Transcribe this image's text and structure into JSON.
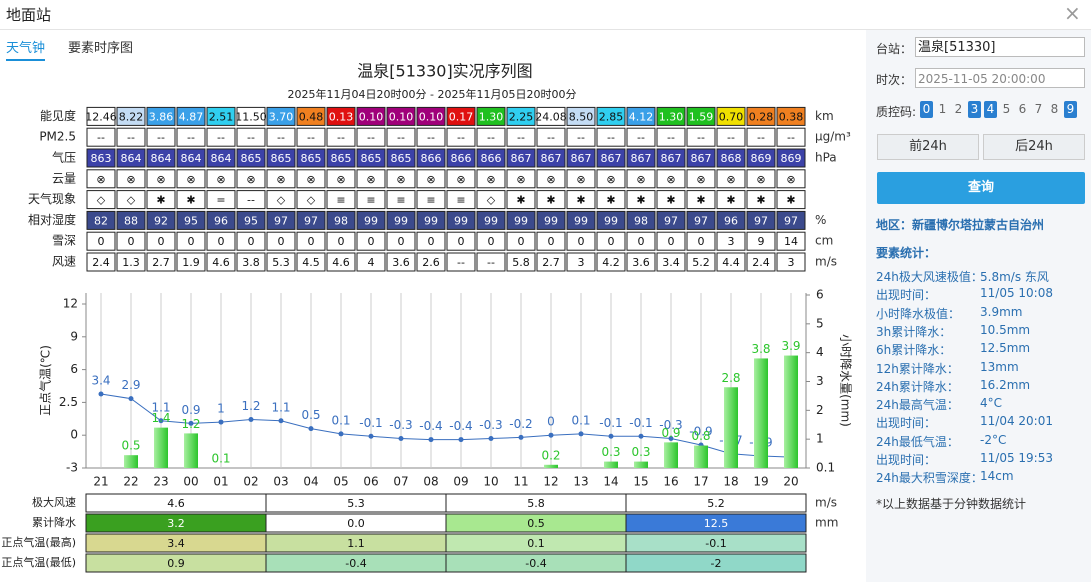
{
  "window": {
    "title": "地面站",
    "close": "×"
  },
  "tabs": [
    "天气钟",
    "要素时序图"
  ],
  "chart_title": "温泉[51330]实况序列图",
  "chart_subtitle": "2025年11月04日20时00分 - 2025年11月05日20时00分",
  "table": {
    "rows": [
      {
        "label": "能见度",
        "unit": "km",
        "values": [
          "12.46",
          "8.22",
          "3.86",
          "4.87",
          "2.51",
          "11.50",
          "3.70",
          "0.48",
          "0.13",
          "0.10",
          "0.10",
          "0.10",
          "0.17",
          "1.30",
          "2.25",
          "24.08",
          "8.50",
          "2.85",
          "4.12",
          "1.30",
          "1.59",
          "0.70",
          "0.28",
          "0.38"
        ],
        "colors": [
          "#ffffff",
          "#c4dcf4",
          "#3aa0e8",
          "#3aa0e8",
          "#30cff0",
          "#ffffff",
          "#3aa0e8",
          "#f08020",
          "#e01010",
          "#a0007a",
          "#a0007a",
          "#a0007a",
          "#e01010",
          "#20c020",
          "#30cff0",
          "#ffffff",
          "#c4dcf4",
          "#30cff0",
          "#3aa0e8",
          "#20c020",
          "#20c020",
          "#f0e000",
          "#f08020",
          "#f08020"
        ]
      },
      {
        "label": "PM2.5",
        "unit": "μg/m³",
        "values": [
          "--",
          "--",
          "--",
          "--",
          "--",
          "--",
          "--",
          "--",
          "--",
          "--",
          "--",
          "--",
          "--",
          "--",
          "--",
          "--",
          "--",
          "--",
          "--",
          "--",
          "--",
          "--",
          "--",
          "--"
        ]
      },
      {
        "label": "气压",
        "unit": "hPa",
        "fill": "#3c42a8",
        "values": [
          "863",
          "864",
          "864",
          "864",
          "864",
          "865",
          "865",
          "865",
          "865",
          "865",
          "865",
          "866",
          "866",
          "866",
          "867",
          "867",
          "867",
          "867",
          "867",
          "867",
          "867",
          "868",
          "869",
          "869"
        ]
      },
      {
        "label": "云量",
        "unit": "",
        "values": [
          "⊗",
          "⊗",
          "⊗",
          "⊗",
          "⊗",
          "⊗",
          "⊗",
          "⊗",
          "⊗",
          "⊗",
          "⊗",
          "⊗",
          "⊗",
          "⊗",
          "⊗",
          "⊗",
          "⊗",
          "⊗",
          "⊗",
          "⊗",
          "⊗",
          "⊗",
          "⊗",
          "⊗"
        ]
      },
      {
        "label": "天气现象",
        "unit": "",
        "values": [
          "◇",
          "◇",
          "✱",
          "✱",
          "=",
          "--",
          "◇",
          "◇",
          "≡",
          "≡",
          "≡",
          "≡",
          "≡",
          "◇",
          "✱",
          "✱",
          "✱",
          "✱",
          "✱",
          "✱",
          "✱",
          "✱",
          "✱",
          "✱"
        ]
      },
      {
        "label": "相对湿度",
        "unit": "%",
        "fill": "#3b4a8c",
        "values": [
          "82",
          "88",
          "92",
          "95",
          "96",
          "95",
          "97",
          "97",
          "98",
          "99",
          "99",
          "99",
          "99",
          "99",
          "99",
          "99",
          "99",
          "99",
          "98",
          "97",
          "97",
          "96",
          "97",
          "97"
        ]
      },
      {
        "label": "雪深",
        "unit": "cm",
        "values": [
          "0",
          "0",
          "0",
          "0",
          "0",
          "0",
          "0",
          "0",
          "0",
          "0",
          "0",
          "0",
          "0",
          "0",
          "0",
          "0",
          "0",
          "0",
          "0",
          "0",
          "0",
          "3",
          "9",
          "14"
        ]
      },
      {
        "label": "风速",
        "unit": "m/s",
        "values": [
          "2.4",
          "1.3",
          "2.7",
          "1.9",
          "4.6",
          "3.8",
          "5.3",
          "4.5",
          "4.6",
          "4",
          "3.6",
          "2.6",
          "--",
          "--",
          "5.8",
          "2.7",
          "3",
          "4.2",
          "3.6",
          "3.4",
          "5.2",
          "4.4",
          "2.4",
          "3"
        ]
      }
    ]
  },
  "chart_data": {
    "type": "bar_line",
    "categories": [
      "21",
      "22",
      "23",
      "00",
      "01",
      "02",
      "03",
      "04",
      "05",
      "06",
      "07",
      "08",
      "09",
      "10",
      "11",
      "12",
      "13",
      "14",
      "15",
      "16",
      "17",
      "18",
      "19",
      "20"
    ],
    "ylabel": "正点气温(℃)",
    "y2label": "小时降水量(mm)",
    "ylim": [
      -3,
      12
    ],
    "yticks": [
      -3,
      0,
      2.5,
      6,
      9,
      12
    ],
    "y2lim": [
      0.1,
      6
    ],
    "y2ticks": [
      0.1,
      1,
      2,
      3,
      4,
      5,
      6
    ],
    "grid": true,
    "series": [
      {
        "name": "正点气温",
        "type": "line",
        "color": "#3a6fbf",
        "values": [
          3.4,
          2.9,
          1.1,
          0.9,
          1,
          1.2,
          1.1,
          0.5,
          0.1,
          -0.1,
          -0.3,
          -0.4,
          -0.4,
          -0.3,
          -0.2,
          0,
          0.1,
          -0.1,
          -0.1,
          -0.3,
          -0.9,
          -1.7,
          -1.9,
          -2
        ]
      },
      {
        "name": "小时降水量",
        "type": "bar",
        "axis": "y2",
        "color": "#2cc52c",
        "values": [
          null,
          0.5,
          1.4,
          1.2,
          0.1,
          null,
          null,
          null,
          null,
          null,
          null,
          null,
          null,
          null,
          null,
          0.2,
          null,
          0.3,
          0.3,
          0.9,
          0.8,
          2.8,
          3.8,
          3.9
        ]
      }
    ]
  },
  "summary": {
    "units": [
      "m/s",
      "mm",
      "",
      ""
    ],
    "rows": [
      {
        "label": "极大风速",
        "values": [
          "4.6",
          "5.3",
          "5.8",
          "5.2"
        ],
        "colors": [
          "#ffffff",
          "#ffffff",
          "#ffffff",
          "#ffffff"
        ]
      },
      {
        "label": "累计降水",
        "values": [
          "3.2",
          "0.0",
          "0.5",
          "12.5"
        ],
        "colors": [
          "#3aa020",
          "#ffffff",
          "#a8e890",
          "#3a7ad8"
        ]
      },
      {
        "label": "正点气温(最高)",
        "values": [
          "3.4",
          "1.1",
          "0.1",
          "-0.1"
        ],
        "colors": [
          "#d8d890",
          "#c8e0a0",
          "#c0e8b0",
          "#a8e0c8"
        ]
      },
      {
        "label": "正点气温(最低)",
        "values": [
          "0.9",
          "-0.4",
          "-0.4",
          "-2"
        ],
        "colors": [
          "#c8e0a0",
          "#a8e0b8",
          "#a8e0b8",
          "#90d8c8"
        ]
      }
    ]
  },
  "panel": {
    "station_label": "台站：",
    "station": "温泉[51330]",
    "time_label": "时次：",
    "time": "2025-11-05 20:00:00",
    "qc_label": "质控码:",
    "qc": [
      "0",
      "1",
      "2",
      "3",
      "4",
      "5",
      "6",
      "7",
      "8",
      "9"
    ],
    "qc_active": [
      true,
      false,
      false,
      true,
      true,
      false,
      false,
      false,
      false,
      true
    ],
    "prev": "前24h",
    "next": "后24h",
    "query": "查询",
    "region": "地区：新疆博尔塔拉蒙古自治州",
    "stats_title": "要素统计：",
    "stats": [
      [
        "24h极大风速极值：",
        "5.8m/s 东风"
      ],
      [
        "出现时间：",
        "11/05 10:08"
      ],
      [
        "小时降水极值：",
        "3.9mm"
      ],
      [
        "3h累计降水：",
        "10.5mm"
      ],
      [
        "6h累计降水：",
        "12.5mm"
      ],
      [
        "12h累计降水：",
        "13mm"
      ],
      [
        "24h累计降水：",
        "16.2mm"
      ],
      [
        "24h最高气温：",
        "4°C"
      ],
      [
        "出现时间：",
        "11/04 20:01"
      ],
      [
        "24h最低气温：",
        "-2°C"
      ],
      [
        "出现时间：",
        "11/05 19:53"
      ],
      [
        "24h最大积雪深度：",
        "14cm"
      ]
    ],
    "note": "*以上数据基于分钟数据统计"
  }
}
